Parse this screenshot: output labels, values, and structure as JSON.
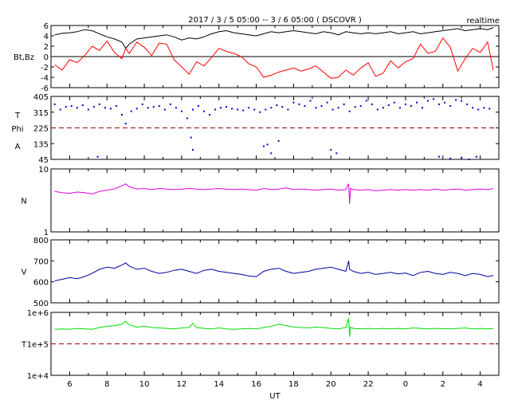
{
  "header": {
    "title": "2017 / 3 / 5  05:00 -- 3 / 6  05:00 ( DSCOVR )",
    "mode": "realtime"
  },
  "colors": {
    "bt": "#000000",
    "bz": "#ff0000",
    "phi": "#0000cc",
    "density": "#dd00dd",
    "speed": "#0000aa",
    "temperature": "#00dd00",
    "reference_line": "#990000"
  },
  "chart_data": [
    {
      "type": "line",
      "ylabel": "Bt,Bz",
      "ylim": [
        -6,
        6
      ],
      "yticks": [
        "6",
        "4",
        "2",
        "0",
        "-2",
        "-4",
        "-6"
      ],
      "series": [
        {
          "name": "Bt",
          "color": "#000000",
          "x": [
            5.2,
            5.6,
            6.0,
            6.4,
            6.8,
            7.2,
            7.6,
            8.0,
            8.4,
            8.8,
            9.0,
            9.2,
            9.6,
            10.0,
            10.4,
            10.8,
            11.2,
            11.6,
            12.0,
            12.4,
            12.8,
            13.2,
            13.6,
            14.0,
            14.4,
            14.8,
            15.2,
            15.6,
            16.0,
            16.4,
            16.8,
            17.2,
            17.6,
            18.0,
            18.4,
            18.8,
            19.2,
            19.6,
            20.0,
            20.4,
            20.8,
            21.2,
            21.6,
            22.0,
            22.4,
            22.8,
            23.2,
            23.6,
            24.0,
            24.4,
            24.8,
            25.2,
            25.6,
            26.0,
            26.4,
            26.8,
            27.2,
            27.6,
            28.0,
            28.4,
            28.7
          ],
          "y": [
            4.2,
            4.5,
            4.6,
            4.8,
            5.2,
            5.0,
            4.4,
            3.8,
            3.4,
            2.8,
            1.6,
            2.4,
            3.4,
            3.6,
            3.8,
            4.0,
            4.2,
            3.8,
            3.2,
            3.6,
            3.4,
            3.8,
            4.4,
            4.8,
            5.0,
            4.6,
            4.4,
            4.2,
            4.0,
            4.4,
            4.8,
            4.6,
            4.8,
            5.0,
            4.8,
            4.6,
            4.4,
            4.8,
            4.6,
            4.2,
            4.8,
            4.6,
            4.4,
            4.6,
            4.4,
            4.6,
            4.8,
            4.4,
            4.6,
            4.8,
            4.4,
            4.6,
            4.8,
            5.0,
            5.2,
            5.4,
            5.0,
            5.2,
            5.4,
            5.2,
            5.6
          ]
        },
        {
          "name": "Bz",
          "color": "#ff0000",
          "x": [
            5.2,
            5.6,
            6.0,
            6.4,
            6.8,
            7.2,
            7.6,
            8.0,
            8.4,
            8.8,
            9.0,
            9.2,
            9.6,
            10.0,
            10.4,
            10.8,
            11.2,
            11.6,
            12.0,
            12.4,
            12.8,
            13.2,
            13.6,
            14.0,
            14.4,
            14.8,
            15.2,
            15.6,
            16.0,
            16.4,
            16.8,
            17.2,
            17.6,
            18.0,
            18.4,
            18.8,
            19.2,
            19.6,
            20.0,
            20.4,
            20.8,
            21.2,
            21.6,
            22.0,
            22.4,
            22.8,
            23.2,
            23.6,
            24.0,
            24.4,
            24.8,
            25.2,
            25.6,
            26.0,
            26.4,
            26.8,
            27.2,
            27.6,
            28.0,
            28.4,
            28.7
          ],
          "y": [
            -1.6,
            -2.6,
            -0.6,
            -1.2,
            0.2,
            2.0,
            1.2,
            3.0,
            0.8,
            -0.4,
            1.6,
            0.6,
            2.8,
            1.8,
            0.2,
            2.6,
            2.4,
            -0.6,
            -2.0,
            -3.4,
            -1.0,
            -1.8,
            -0.2,
            1.6,
            1.0,
            0.6,
            0.0,
            -1.4,
            -2.0,
            -4.0,
            -3.6,
            -3.0,
            -2.6,
            -2.2,
            -2.8,
            -2.4,
            -1.8,
            -3.0,
            -4.2,
            -4.0,
            -2.6,
            -3.6,
            -2.2,
            -1.2,
            -3.8,
            -3.2,
            -0.8,
            -2.2,
            -1.0,
            -0.4,
            2.4,
            0.6,
            1.0,
            3.6,
            1.8,
            -2.8,
            -0.4,
            1.6,
            0.8,
            2.8,
            -2.6
          ]
        }
      ]
    },
    {
      "type": "scatter",
      "ylabels": [
        "T",
        "Phi",
        "A"
      ],
      "ylim": [
        45,
        405
      ],
      "yticks": [
        "405",
        "315",
        "225",
        "135",
        "45"
      ],
      "reference_y": 225,
      "series": [
        {
          "name": "Phi",
          "color": "#0000cc",
          "x": [
            5.2,
            5.5,
            5.8,
            6.1,
            6.4,
            6.7,
            7.0,
            7.3,
            7.6,
            7.9,
            8.2,
            8.5,
            8.8,
            9.0,
            9.3,
            9.6,
            9.9,
            10.2,
            10.5,
            10.8,
            11.1,
            11.4,
            11.7,
            12.0,
            12.3,
            12.6,
            12.9,
            13.2,
            13.5,
            13.8,
            14.1,
            14.4,
            14.7,
            15.0,
            15.3,
            15.6,
            15.9,
            16.2,
            16.5,
            16.8,
            17.1,
            17.4,
            17.7,
            18.0,
            18.3,
            18.6,
            18.9,
            19.2,
            19.5,
            19.8,
            20.1,
            20.4,
            20.7,
            21.0,
            21.3,
            21.6,
            21.9,
            22.2,
            22.5,
            22.8,
            23.1,
            23.4,
            23.7,
            24.0,
            24.3,
            24.6,
            24.9,
            25.2,
            25.5,
            25.8,
            26.1,
            26.4,
            26.7,
            27.0,
            27.3,
            27.6,
            27.9,
            28.2,
            28.5,
            7.5,
            12.6,
            16.4,
            16.8,
            17.2,
            20.0,
            20.3,
            25.8,
            26.4,
            27.0,
            27.4,
            27.8,
            12.5,
            16.6
          ],
          "y": [
            360,
            330,
            345,
            350,
            340,
            355,
            330,
            345,
            360,
            340,
            335,
            350,
            300,
            250,
            320,
            335,
            360,
            340,
            345,
            350,
            330,
            360,
            340,
            320,
            280,
            330,
            350,
            320,
            300,
            330,
            340,
            345,
            335,
            330,
            325,
            340,
            330,
            315,
            330,
            340,
            355,
            345,
            330,
            370,
            360,
            350,
            380,
            340,
            350,
            370,
            330,
            340,
            360,
            320,
            345,
            350,
            380,
            360,
            330,
            340,
            355,
            370,
            340,
            360,
            350,
            370,
            340,
            380,
            390,
            360,
            370,
            350,
            385,
            380,
            360,
            340,
            330,
            340,
            335,
            60,
            100,
            120,
            80,
            150,
            100,
            80,
            60,
            50,
            55,
            45,
            60,
            170,
            130
          ]
        }
      ]
    },
    {
      "type": "line",
      "ylabel": "N",
      "ylim": [
        1,
        10
      ],
      "yscale": "log",
      "yticks": [
        "10",
        "1"
      ],
      "series": [
        {
          "name": "N",
          "color": "#dd00dd",
          "x": [
            5.2,
            5.6,
            6.0,
            6.4,
            6.8,
            7.2,
            7.6,
            8.0,
            8.4,
            8.8,
            9.0,
            9.2,
            9.6,
            10.0,
            10.4,
            10.8,
            11.2,
            11.6,
            12.0,
            12.4,
            12.8,
            13.2,
            13.6,
            14.0,
            14.4,
            14.8,
            15.2,
            15.6,
            16.0,
            16.4,
            16.8,
            17.2,
            17.6,
            18.0,
            18.4,
            18.8,
            19.2,
            19.6,
            20.0,
            20.4,
            20.8,
            20.95,
            21.0,
            21.05,
            21.2,
            21.6,
            22.0,
            22.4,
            22.8,
            23.2,
            23.6,
            24.0,
            24.4,
            24.8,
            25.2,
            25.6,
            26.0,
            26.4,
            26.8,
            27.2,
            27.6,
            28.0,
            28.4,
            28.7
          ],
          "y": [
            4.4,
            4.2,
            4.1,
            4.3,
            4.2,
            4.0,
            4.4,
            4.6,
            4.8,
            5.4,
            5.8,
            5.2,
            4.8,
            4.9,
            4.7,
            4.9,
            4.8,
            4.7,
            4.8,
            4.9,
            4.8,
            4.7,
            4.8,
            4.9,
            4.8,
            4.7,
            4.8,
            4.7,
            4.6,
            4.9,
            4.7,
            4.8,
            5.0,
            4.7,
            4.8,
            4.7,
            4.6,
            4.7,
            4.8,
            4.6,
            4.7,
            5.8,
            2.8,
            4.9,
            4.7,
            4.6,
            4.7,
            4.5,
            4.6,
            4.7,
            4.6,
            4.7,
            4.6,
            4.7,
            4.6,
            4.8,
            4.6,
            4.7,
            4.8,
            4.6,
            4.7,
            4.8,
            4.7,
            4.9
          ]
        }
      ]
    },
    {
      "type": "line",
      "ylabel": "V",
      "ylim": [
        500,
        800
      ],
      "yticks": [
        "800",
        "700",
        "600",
        "500"
      ],
      "series": [
        {
          "name": "V",
          "color": "#0000aa",
          "x": [
            5.2,
            5.6,
            6.0,
            6.4,
            6.8,
            7.2,
            7.6,
            8.0,
            8.4,
            8.8,
            9.0,
            9.2,
            9.6,
            10.0,
            10.4,
            10.8,
            11.2,
            11.6,
            12.0,
            12.4,
            12.8,
            13.2,
            13.6,
            14.0,
            14.4,
            14.8,
            15.2,
            15.6,
            16.0,
            16.4,
            16.8,
            17.2,
            17.6,
            18.0,
            18.4,
            18.8,
            19.2,
            19.6,
            20.0,
            20.4,
            20.8,
            20.95,
            21.0,
            21.2,
            21.6,
            22.0,
            22.4,
            22.8,
            23.2,
            23.6,
            24.0,
            24.4,
            24.8,
            25.2,
            25.6,
            26.0,
            26.4,
            26.8,
            27.2,
            27.6,
            28.0,
            28.4,
            28.7
          ],
          "y": [
            605,
            612,
            620,
            615,
            625,
            640,
            660,
            670,
            665,
            680,
            690,
            675,
            660,
            665,
            650,
            640,
            645,
            655,
            660,
            650,
            640,
            655,
            660,
            650,
            645,
            640,
            635,
            628,
            625,
            650,
            660,
            665,
            650,
            640,
            645,
            650,
            660,
            665,
            670,
            660,
            650,
            700,
            660,
            650,
            640,
            645,
            635,
            640,
            645,
            638,
            642,
            630,
            645,
            650,
            640,
            635,
            645,
            640,
            630,
            640,
            635,
            625,
            630
          ]
        }
      ]
    },
    {
      "type": "line",
      "ylabel": "T",
      "ylim": [
        10000,
        1000000
      ],
      "yscale": "log",
      "yticks": [
        "1e+6",
        "1e+5",
        "1e+4"
      ],
      "reference_y": 100000,
      "series": [
        {
          "name": "T",
          "color": "#00dd00",
          "x": [
            5.2,
            5.6,
            6.0,
            6.4,
            6.8,
            7.2,
            7.6,
            8.0,
            8.4,
            8.8,
            9.0,
            9.2,
            9.6,
            10.0,
            10.4,
            10.8,
            11.2,
            11.6,
            12.0,
            12.4,
            12.6,
            12.8,
            13.2,
            13.6,
            14.0,
            14.4,
            14.8,
            15.2,
            15.6,
            16.0,
            16.4,
            16.8,
            17.2,
            17.6,
            18.0,
            18.4,
            18.8,
            19.2,
            19.6,
            20.0,
            20.4,
            20.8,
            20.95,
            21.0,
            21.05,
            21.2,
            21.6,
            22.0,
            22.4,
            22.8,
            23.2,
            23.6,
            24.0,
            24.4,
            24.8,
            25.2,
            25.6,
            26.0,
            26.4,
            26.8,
            27.2,
            27.6,
            28.0,
            28.4,
            28.7
          ],
          "y": [
            290000,
            300000,
            290000,
            310000,
            300000,
            290000,
            330000,
            360000,
            380000,
            420000,
            520000,
            400000,
            340000,
            360000,
            330000,
            320000,
            310000,
            300000,
            320000,
            330000,
            450000,
            330000,
            310000,
            300000,
            320000,
            300000,
            290000,
            300000,
            310000,
            300000,
            330000,
            360000,
            420000,
            380000,
            340000,
            330000,
            320000,
            340000,
            330000,
            310000,
            300000,
            330000,
            650000,
            170000,
            340000,
            310000,
            300000,
            310000,
            300000,
            310000,
            300000,
            310000,
            300000,
            320000,
            310000,
            300000,
            310000,
            305000,
            300000,
            310000,
            320000,
            300000,
            310000,
            300000,
            305000
          ]
        }
      ]
    }
  ],
  "xaxis": {
    "label": "UT",
    "xlim": [
      5.0,
      29.0
    ],
    "tick_labels": [
      "6",
      "8",
      "10",
      "12",
      "14",
      "16",
      "18",
      "20",
      "22",
      "0",
      "2",
      "4"
    ]
  }
}
